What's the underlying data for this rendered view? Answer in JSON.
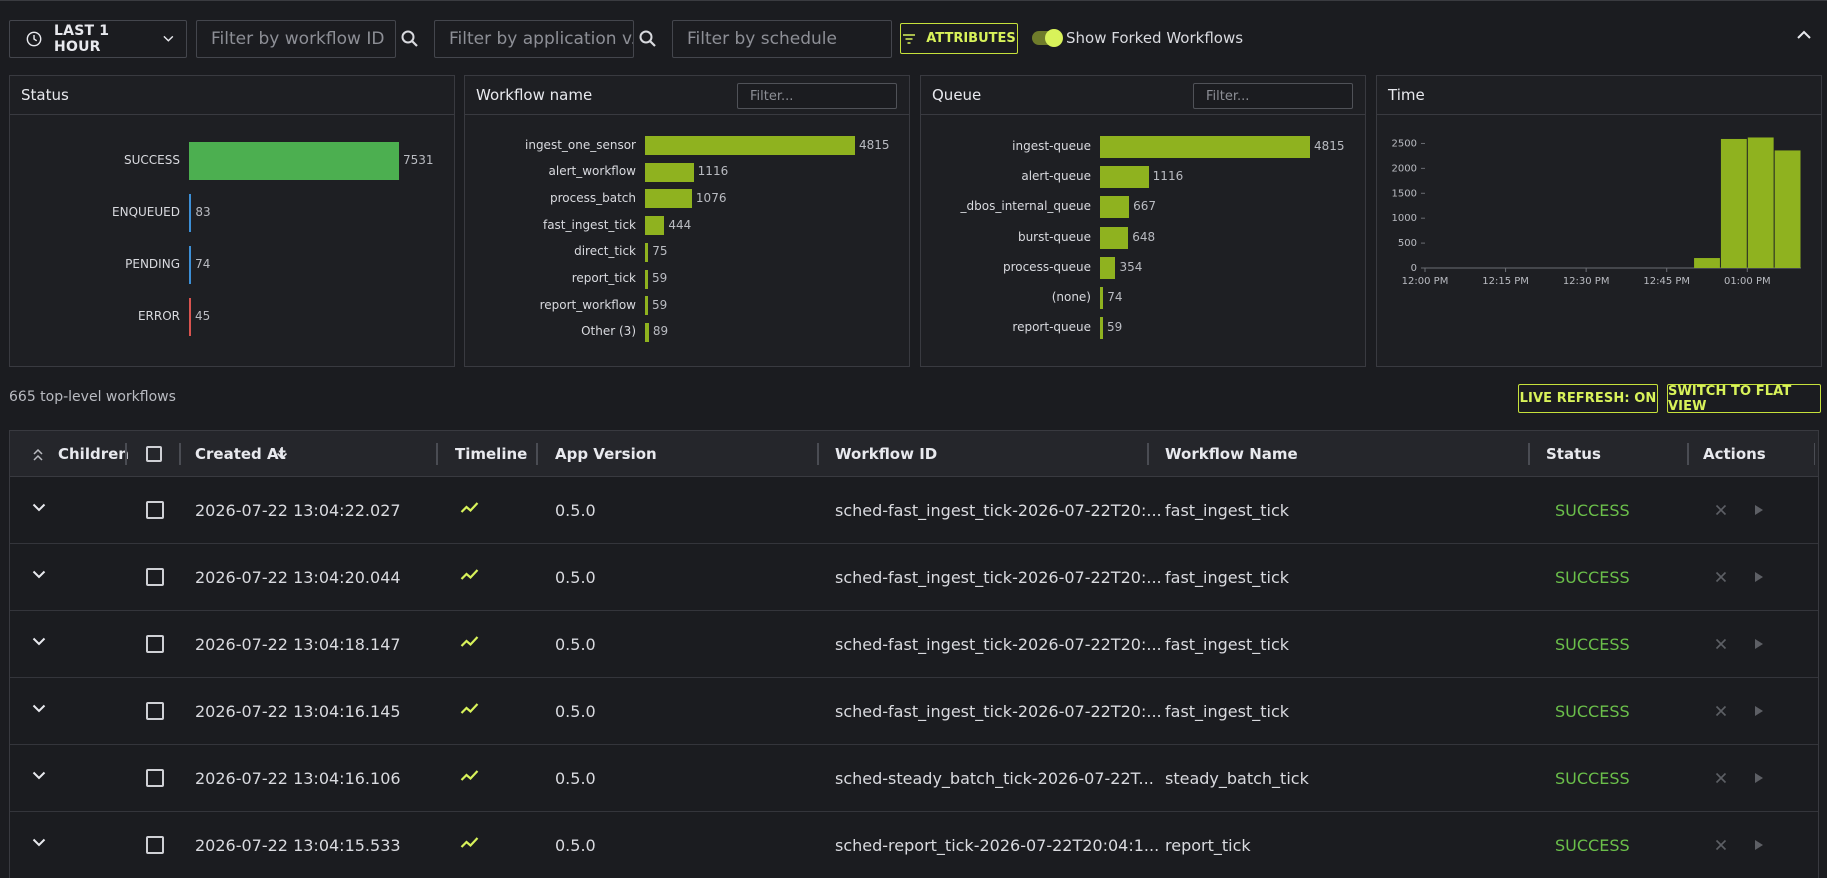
{
  "toolbar": {
    "range_label": "LAST 1 HOUR",
    "filter_workflow_id": "Filter by workflow ID",
    "filter_app_version": "Filter by application v...",
    "filter_schedule": "Filter by schedule",
    "attributes_label": "ATTRIBUTES",
    "show_forked_label": "Show Forked Workflows",
    "show_forked_on": true
  },
  "panels": {
    "status": {
      "title": "Status",
      "items": [
        {
          "label": "SUCCESS",
          "value": 7531,
          "color": "#4caf50"
        },
        {
          "label": "ENQUEUED",
          "value": 83,
          "color": "#3d8fd6"
        },
        {
          "label": "PENDING",
          "value": 74,
          "color": "#3d8fd6"
        },
        {
          "label": "ERROR",
          "value": 45,
          "color": "#d9534f"
        }
      ]
    },
    "workflow_name": {
      "title": "Workflow name",
      "filter_placeholder": "Filter...",
      "items": [
        {
          "label": "ingest_one_sensor",
          "value": 4815
        },
        {
          "label": "alert_workflow",
          "value": 1116
        },
        {
          "label": "process_batch",
          "value": 1076
        },
        {
          "label": "fast_ingest_tick",
          "value": 444
        },
        {
          "label": "direct_tick",
          "value": 75
        },
        {
          "label": "report_tick",
          "value": 59
        },
        {
          "label": "report_workflow",
          "value": 59
        },
        {
          "label": "Other (3)",
          "value": 89
        }
      ]
    },
    "queue": {
      "title": "Queue",
      "filter_placeholder": "Filter...",
      "items": [
        {
          "label": "ingest-queue",
          "value": 4815
        },
        {
          "label": "alert-queue",
          "value": 1116
        },
        {
          "label": "_dbos_internal_queue",
          "value": 667
        },
        {
          "label": "burst-queue",
          "value": 648
        },
        {
          "label": "process-queue",
          "value": 354
        },
        {
          "label": "(none)",
          "value": 74
        },
        {
          "label": "report-queue",
          "value": 59
        }
      ]
    },
    "time": {
      "title": "Time"
    }
  },
  "chart_data": {
    "type": "bar",
    "title": "Time",
    "x_ticks": [
      "12:00 PM",
      "12:15 PM",
      "12:30 PM",
      "12:45 PM",
      "01:00 PM"
    ],
    "y_ticks": [
      0,
      500,
      1000,
      1500,
      2000,
      2500
    ],
    "ylim": [
      0,
      2750
    ],
    "xlim_minutes": [
      0,
      65
    ],
    "bins": [
      {
        "start": 50,
        "end": 55,
        "value": 200
      },
      {
        "start": 55,
        "end": 60,
        "value": 2590
      },
      {
        "start": 60,
        "end": 65,
        "value": 2620
      },
      {
        "start": 65,
        "end": 70,
        "value": 2360
      }
    ],
    "color": "#8fb21f"
  },
  "summary": {
    "count_text": "665 top-level workflows",
    "live_refresh": "LIVE REFRESH: ON",
    "switch_view": "SWITCH TO FLAT VIEW"
  },
  "table": {
    "columns": {
      "children": "Children",
      "created_at": "Created At",
      "timeline": "Timeline",
      "app_version": "App Version",
      "workflow_id": "Workflow ID",
      "workflow_name": "Workflow Name",
      "status": "Status",
      "actions": "Actions"
    },
    "rows": [
      {
        "created_at": "2026-07-22 13:04:22.027",
        "app_version": "0.5.0",
        "workflow_id": "sched-fast_ingest_tick-2026-07-22T20:...",
        "workflow_name": "fast_ingest_tick",
        "status": "SUCCESS"
      },
      {
        "created_at": "2026-07-22 13:04:20.044",
        "app_version": "0.5.0",
        "workflow_id": "sched-fast_ingest_tick-2026-07-22T20:...",
        "workflow_name": "fast_ingest_tick",
        "status": "SUCCESS"
      },
      {
        "created_at": "2026-07-22 13:04:18.147",
        "app_version": "0.5.0",
        "workflow_id": "sched-fast_ingest_tick-2026-07-22T20:...",
        "workflow_name": "fast_ingest_tick",
        "status": "SUCCESS"
      },
      {
        "created_at": "2026-07-22 13:04:16.145",
        "app_version": "0.5.0",
        "workflow_id": "sched-fast_ingest_tick-2026-07-22T20:...",
        "workflow_name": "fast_ingest_tick",
        "status": "SUCCESS"
      },
      {
        "created_at": "2026-07-22 13:04:16.106",
        "app_version": "0.5.0",
        "workflow_id": "sched-steady_batch_tick-2026-07-22T...",
        "workflow_name": "steady_batch_tick",
        "status": "SUCCESS"
      },
      {
        "created_at": "2026-07-22 13:04:15.533",
        "app_version": "0.5.0",
        "workflow_id": "sched-report_tick-2026-07-22T20:04:1...",
        "workflow_name": "report_tick",
        "status": "SUCCESS"
      }
    ]
  },
  "colors": {
    "accent": "#d8f25a",
    "bar_green": "#8fb21f",
    "success_text": "#6bbf4a",
    "background": "#1b1c20"
  }
}
